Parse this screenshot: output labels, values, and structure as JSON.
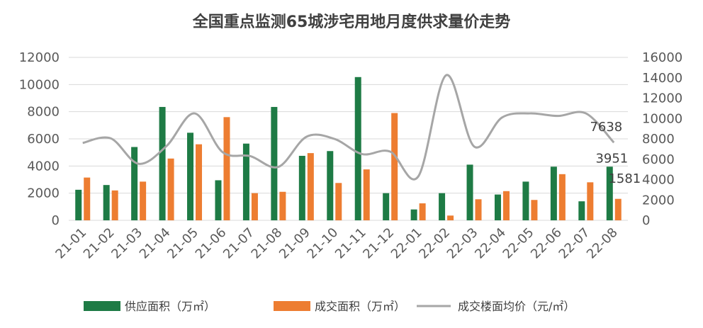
{
  "chart_data": {
    "type": "bar",
    "title": "全国重点监测65城涉宅用地月度供求量价走势",
    "categories": [
      "21-01",
      "21-02",
      "21-03",
      "21-04",
      "21-05",
      "21-06",
      "21-07",
      "21-08",
      "21-09",
      "21-10",
      "21-11",
      "21-12",
      "22-01",
      "22-02",
      "22-03",
      "22-04",
      "22-05",
      "22-06",
      "22-07",
      "22-08"
    ],
    "y_left": {
      "ylim": [
        0,
        12000
      ],
      "ticks": [
        "0",
        "2000",
        "4000",
        "6000",
        "8000",
        "10000",
        "12000"
      ]
    },
    "y_right": {
      "ylim": [
        0,
        16000
      ],
      "ticks": [
        "0",
        "2000",
        "4000",
        "6000",
        "8000",
        "10000",
        "12000",
        "14000",
        "16000"
      ]
    },
    "series": [
      {
        "name": "供应面积（万㎡）",
        "type": "bar",
        "axis": "left",
        "color": "#1e7b45",
        "values": [
          2250,
          2600,
          5400,
          8350,
          6450,
          2950,
          5650,
          8350,
          4750,
          5100,
          10550,
          2000,
          800,
          2000,
          4100,
          1900,
          2850,
          3950,
          1400,
          3951
        ]
      },
      {
        "name": "成交面积（万㎡）",
        "type": "bar",
        "axis": "left",
        "color": "#ed7d31",
        "values": [
          3150,
          2200,
          2850,
          4550,
          5600,
          7600,
          2000,
          2100,
          4950,
          2750,
          3750,
          7900,
          1250,
          350,
          1550,
          2150,
          1500,
          3400,
          2800,
          1581
        ]
      },
      {
        "name": "成交楼面均价（元/㎡）",
        "type": "line",
        "axis": "right",
        "color": "#a6a6a6",
        "values": [
          7600,
          8050,
          5550,
          7300,
          10500,
          6700,
          6300,
          5250,
          8200,
          8000,
          6500,
          6750,
          4300,
          14250,
          7250,
          10100,
          10500,
          10250,
          10500,
          7638
        ]
      }
    ],
    "data_labels": [
      {
        "series": 2,
        "index": 19,
        "text": "7638"
      },
      {
        "series": 0,
        "index": 19,
        "text": "3951"
      },
      {
        "series": 1,
        "index": 19,
        "text": "1581"
      }
    ],
    "legend": {
      "position": "bottom",
      "items": [
        "供应面积（万㎡）",
        "成交面积（万㎡）",
        "成交楼面均价（元/㎡）"
      ]
    },
    "grid": true
  }
}
